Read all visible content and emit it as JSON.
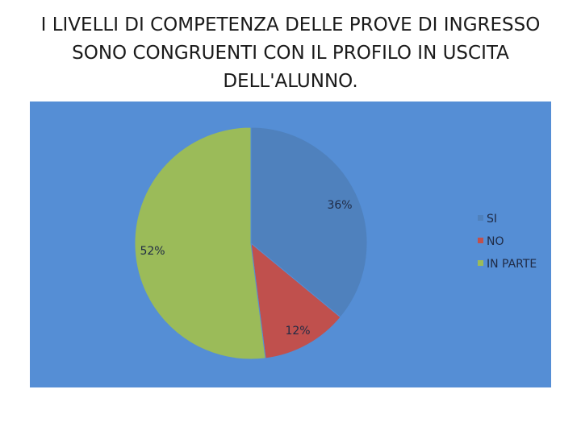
{
  "chart_data": {
    "type": "pie",
    "title": "I LIVELLI DI COMPETENZA DELLE PROVE DI INGRESSO SONO CONGRUENTI CON IL PROFILO IN USCITA DELL'ALUNNO.",
    "title_lines": [
      "I LIVELLI DI COMPETENZA DELLE PROVE DI INGRESSO",
      "SONO CONGRUENTI CON IL PROFILO IN USCITA",
      "DELL'ALUNNO."
    ],
    "categories": [
      "SI",
      "NO",
      "IN PARTE"
    ],
    "values": [
      36,
      12,
      52
    ],
    "data_labels": [
      "36%",
      "12%",
      "52%"
    ],
    "colors": [
      "#4f81bd",
      "#c0504d",
      "#9bbb59"
    ],
    "legend_position": "right",
    "background_color": "#558ed5"
  }
}
